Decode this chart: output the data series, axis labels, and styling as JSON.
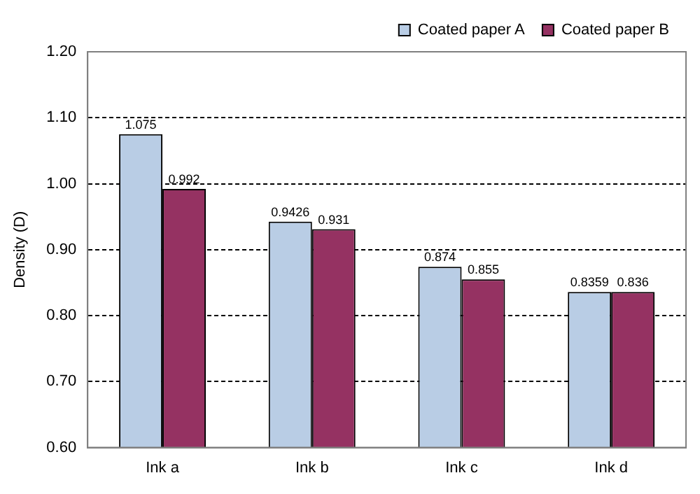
{
  "chart_data": {
    "type": "bar",
    "ylabel": "Density (D)",
    "categories": [
      "Ink a",
      "Ink b",
      "Ink c",
      "Ink d"
    ],
    "series": [
      {
        "name": "Coated paper A",
        "color": "#b9cde5",
        "values": [
          1.075,
          0.9426,
          0.874,
          0.8359
        ]
      },
      {
        "name": "Coated paper B",
        "color": "#953262",
        "values": [
          0.992,
          0.931,
          0.855,
          0.836
        ]
      }
    ],
    "ylim": [
      0.6,
      1.2
    ],
    "yticks": [
      {
        "value": 0.6,
        "label": "0.60"
      },
      {
        "value": 0.7,
        "label": "0.70"
      },
      {
        "value": 0.8,
        "label": "0.80"
      },
      {
        "value": 0.9,
        "label": "0.90"
      },
      {
        "value": 1.0,
        "label": "1.00"
      },
      {
        "value": 1.1,
        "label": "1.10"
      },
      {
        "value": 1.2,
        "label": "1.20"
      }
    ],
    "grid": "y",
    "legend": "top right",
    "data_labels": true
  }
}
